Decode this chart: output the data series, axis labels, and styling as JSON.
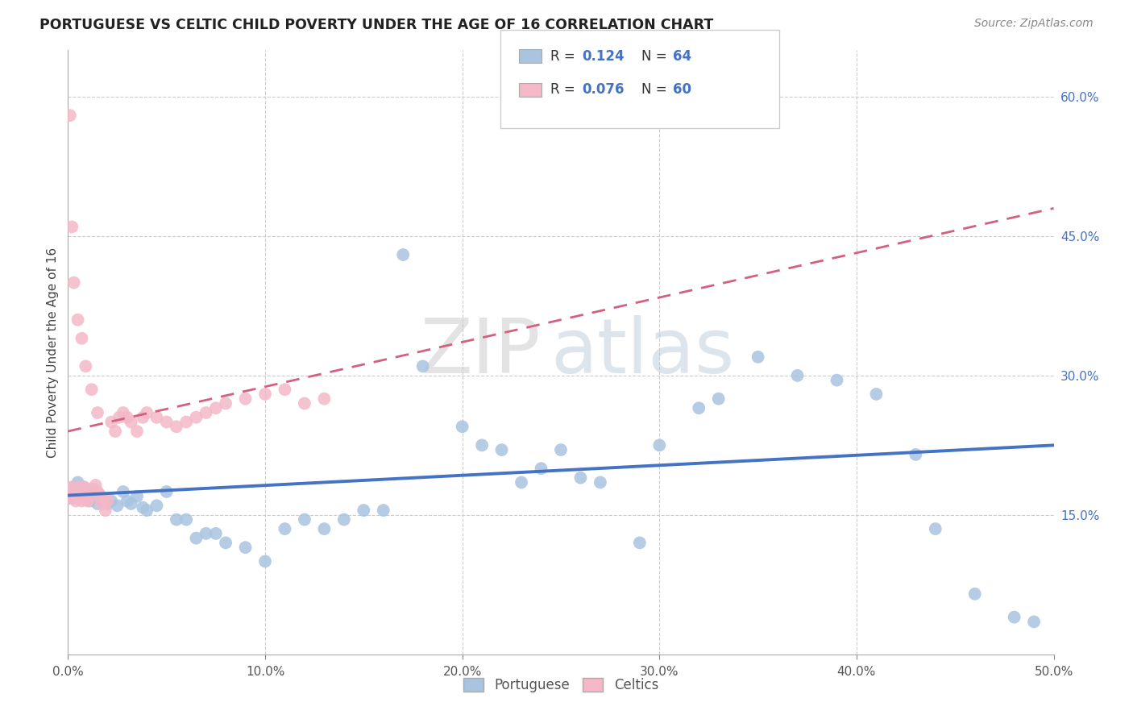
{
  "title": "PORTUGUESE VS CELTIC CHILD POVERTY UNDER THE AGE OF 16 CORRELATION CHART",
  "source": "Source: ZipAtlas.com",
  "ylabel": "Child Poverty Under the Age of 16",
  "xlim": [
    0,
    0.5
  ],
  "ylim": [
    0,
    0.65
  ],
  "xtick_vals": [
    0.0,
    0.1,
    0.2,
    0.3,
    0.4,
    0.5
  ],
  "ytick_vals": [
    0.15,
    0.3,
    0.45,
    0.6
  ],
  "ytick_labels": [
    "15.0%",
    "30.0%",
    "45.0%",
    "60.0%"
  ],
  "xtick_labels": [
    "0.0%",
    "10.0%",
    "20.0%",
    "30.0%",
    "40.0%",
    "50.0%"
  ],
  "grid_color": "#cccccc",
  "background_color": "#ffffff",
  "watermark": "ZIPatlas",
  "portuguese_color": "#a8c4e0",
  "celtics_color": "#f4b8c8",
  "portuguese_line_color": "#4472c4",
  "celtics_line_color": "#d46080",
  "portuguese_x": [
    0.001,
    0.002,
    0.003,
    0.004,
    0.005,
    0.006,
    0.007,
    0.008,
    0.009,
    0.01,
    0.011,
    0.012,
    0.013,
    0.015,
    0.016,
    0.018,
    0.02,
    0.022,
    0.025,
    0.028,
    0.03,
    0.032,
    0.035,
    0.038,
    0.04,
    0.045,
    0.05,
    0.055,
    0.06,
    0.065,
    0.07,
    0.075,
    0.08,
    0.09,
    0.1,
    0.11,
    0.12,
    0.13,
    0.14,
    0.15,
    0.16,
    0.17,
    0.18,
    0.2,
    0.21,
    0.22,
    0.23,
    0.24,
    0.25,
    0.26,
    0.27,
    0.29,
    0.3,
    0.32,
    0.33,
    0.35,
    0.37,
    0.39,
    0.41,
    0.43,
    0.44,
    0.46,
    0.48,
    0.49
  ],
  "portuguese_y": [
    0.175,
    0.168,
    0.18,
    0.172,
    0.185,
    0.175,
    0.178,
    0.18,
    0.172,
    0.168,
    0.165,
    0.17,
    0.175,
    0.162,
    0.168,
    0.165,
    0.162,
    0.165,
    0.16,
    0.175,
    0.165,
    0.162,
    0.17,
    0.158,
    0.155,
    0.16,
    0.175,
    0.145,
    0.145,
    0.125,
    0.13,
    0.13,
    0.12,
    0.115,
    0.1,
    0.135,
    0.145,
    0.135,
    0.145,
    0.155,
    0.155,
    0.43,
    0.31,
    0.245,
    0.225,
    0.22,
    0.185,
    0.2,
    0.22,
    0.19,
    0.185,
    0.12,
    0.225,
    0.265,
    0.275,
    0.32,
    0.3,
    0.295,
    0.28,
    0.215,
    0.135,
    0.065,
    0.04,
    0.035
  ],
  "celtics_x": [
    0.001,
    0.001,
    0.002,
    0.002,
    0.003,
    0.003,
    0.004,
    0.004,
    0.005,
    0.005,
    0.006,
    0.006,
    0.007,
    0.007,
    0.008,
    0.008,
    0.009,
    0.009,
    0.01,
    0.01,
    0.011,
    0.012,
    0.013,
    0.014,
    0.015,
    0.016,
    0.017,
    0.018,
    0.019,
    0.02,
    0.022,
    0.024,
    0.026,
    0.028,
    0.03,
    0.032,
    0.035,
    0.038,
    0.04,
    0.045,
    0.05,
    0.055,
    0.06,
    0.065,
    0.07,
    0.075,
    0.08,
    0.09,
    0.1,
    0.11,
    0.12,
    0.13,
    0.001,
    0.002,
    0.003,
    0.005,
    0.007,
    0.009,
    0.012,
    0.015
  ],
  "celtics_y": [
    0.175,
    0.168,
    0.18,
    0.172,
    0.175,
    0.168,
    0.178,
    0.165,
    0.18,
    0.172,
    0.175,
    0.168,
    0.178,
    0.165,
    0.18,
    0.172,
    0.175,
    0.168,
    0.178,
    0.165,
    0.175,
    0.17,
    0.178,
    0.182,
    0.175,
    0.172,
    0.162,
    0.168,
    0.155,
    0.165,
    0.25,
    0.24,
    0.255,
    0.26,
    0.255,
    0.25,
    0.24,
    0.255,
    0.26,
    0.255,
    0.25,
    0.245,
    0.25,
    0.255,
    0.26,
    0.265,
    0.27,
    0.275,
    0.28,
    0.285,
    0.27,
    0.275,
    0.58,
    0.46,
    0.4,
    0.36,
    0.34,
    0.31,
    0.285,
    0.26
  ],
  "legend_r_port": "R = 0.124",
  "legend_n_port": "N = 64",
  "legend_r_celt": "R = 0.076",
  "legend_n_celt": "N = 60"
}
